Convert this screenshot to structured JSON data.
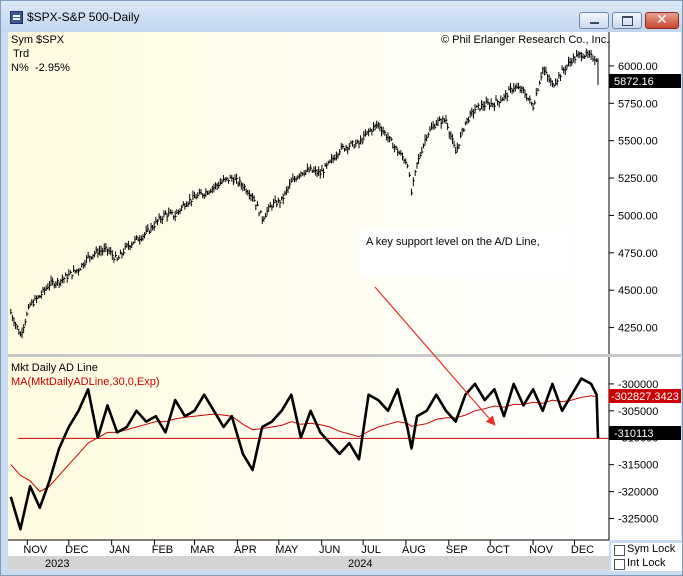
{
  "window": {
    "title": "$SPX-S&P 500-Daily",
    "controls": [
      "minimize-icon",
      "maximize-icon",
      "close-icon"
    ]
  },
  "info_panel": {
    "sym_label": "Sym",
    "sym_value": "$SPX",
    "trd_label": "Trd",
    "n_label": "N%",
    "n_value": "-2.95%"
  },
  "copyright": "© Phil Erlanger Research Co., Inc.",
  "annotation": "A key support level on the A/D Line,",
  "lower_titles": {
    "title1": "Mkt Daily AD Line",
    "title2": "MA(MktDailyADLine,30,0,Exp)"
  },
  "locks": {
    "sym_lock": "Sym Lock",
    "int_lock": "Int Lock"
  },
  "colors": {
    "price": "#000000",
    "ad_line": "#000000",
    "ma_line": "#cc0000",
    "support_line": "#cc0000",
    "arrow": "#e8302a",
    "bg_left": "#fffce8",
    "bg_right": "#ffffff"
  },
  "chart_data": [
    {
      "type": "line",
      "title": "$SPX-S&P 500-Daily",
      "style": "ohlc-bars",
      "ylim": [
        4100,
        6200
      ],
      "yticks": [
        "6000.00",
        "5750.00",
        "5500.00",
        "5250.00",
        "5000.00",
        "4750.00",
        "4500.00",
        "4250.00"
      ],
      "last_value_label": "5872.16",
      "x": [
        "2023-10-20",
        "2023-10-27",
        "2023-11-03",
        "2023-11-10",
        "2023-11-17",
        "2023-11-24",
        "2023-12-01",
        "2023-12-08",
        "2023-12-15",
        "2023-12-22",
        "2023-12-29",
        "2024-01-05",
        "2024-01-12",
        "2024-01-19",
        "2024-01-26",
        "2024-02-02",
        "2024-02-09",
        "2024-02-16",
        "2024-02-23",
        "2024-03-01",
        "2024-03-08",
        "2024-03-15",
        "2024-03-22",
        "2024-03-28",
        "2024-04-05",
        "2024-04-12",
        "2024-04-19",
        "2024-04-26",
        "2024-05-03",
        "2024-05-10",
        "2024-05-17",
        "2024-05-24",
        "2024-05-31",
        "2024-06-07",
        "2024-06-14",
        "2024-06-21",
        "2024-06-28",
        "2024-07-05",
        "2024-07-12",
        "2024-07-19",
        "2024-07-26",
        "2024-08-02",
        "2024-08-05",
        "2024-08-09",
        "2024-08-16",
        "2024-08-23",
        "2024-08-30",
        "2024-09-06",
        "2024-09-13",
        "2024-09-20",
        "2024-09-27",
        "2024-10-04",
        "2024-10-11",
        "2024-10-18",
        "2024-10-25",
        "2024-11-01",
        "2024-11-08",
        "2024-11-15",
        "2024-11-22",
        "2024-11-29",
        "2024-12-06",
        "2024-12-13",
        "2024-12-17",
        "2024-12-18"
      ],
      "series": [
        {
          "values": [
            4350,
            4200,
            4400,
            4460,
            4540,
            4560,
            4600,
            4640,
            4720,
            4760,
            4770,
            4700,
            4790,
            4840,
            4880,
            4950,
            5010,
            5000,
            5080,
            5120,
            5150,
            5190,
            5230,
            5250,
            5200,
            5130,
            4980,
            5070,
            5100,
            5220,
            5290,
            5300,
            5280,
            5350,
            5440,
            5470,
            5480,
            5560,
            5610,
            5520,
            5430,
            5350,
            5150,
            5340,
            5540,
            5620,
            5640,
            5420,
            5620,
            5710,
            5740,
            5750,
            5790,
            5860,
            5830,
            5730,
            5980,
            5870,
            5960,
            6040,
            6080,
            6060,
            6050,
            5872
          ]
        }
      ]
    },
    {
      "type": "line",
      "title": "Mkt Daily AD Line",
      "ylim": [
        -329000,
        -295000
      ],
      "yticks": [
        "-300000",
        "-305000",
        "-310000",
        "-315000",
        "-320000",
        "-325000"
      ],
      "last_value_label": "-310113",
      "ma_value_label": "-302827.3423",
      "support_level": -310113,
      "x": [
        "2023-10-20",
        "2023-10-27",
        "2023-11-03",
        "2023-11-10",
        "2023-11-17",
        "2023-11-24",
        "2023-12-01",
        "2023-12-08",
        "2023-12-15",
        "2023-12-22",
        "2023-12-29",
        "2024-01-05",
        "2024-01-12",
        "2024-01-19",
        "2024-01-26",
        "2024-02-02",
        "2024-02-09",
        "2024-02-16",
        "2024-02-23",
        "2024-03-01",
        "2024-03-08",
        "2024-03-15",
        "2024-03-22",
        "2024-03-28",
        "2024-04-05",
        "2024-04-12",
        "2024-04-19",
        "2024-04-26",
        "2024-05-03",
        "2024-05-10",
        "2024-05-17",
        "2024-05-24",
        "2024-05-31",
        "2024-06-07",
        "2024-06-14",
        "2024-06-21",
        "2024-06-28",
        "2024-07-05",
        "2024-07-12",
        "2024-07-19",
        "2024-07-26",
        "2024-08-02",
        "2024-08-05",
        "2024-08-09",
        "2024-08-16",
        "2024-08-23",
        "2024-08-30",
        "2024-09-06",
        "2024-09-13",
        "2024-09-20",
        "2024-09-27",
        "2024-10-04",
        "2024-10-11",
        "2024-10-18",
        "2024-10-25",
        "2024-11-01",
        "2024-11-08",
        "2024-11-15",
        "2024-11-22",
        "2024-11-29",
        "2024-12-06",
        "2024-12-13",
        "2024-12-17",
        "2024-12-18"
      ],
      "series": [
        {
          "name": "Mkt Daily AD Line",
          "values": [
            -321000,
            -327000,
            -319000,
            -323000,
            -318000,
            -312000,
            -308000,
            -305000,
            -301000,
            -310000,
            -304000,
            -309000,
            -308000,
            -305000,
            -307000,
            -306000,
            -309000,
            -303000,
            -306000,
            -305000,
            -302000,
            -305000,
            -308000,
            -306000,
            -313000,
            -316000,
            -308000,
            -307000,
            -305000,
            -302000,
            -310000,
            -305000,
            -309000,
            -311000,
            -313000,
            -311000,
            -314000,
            -302000,
            -303000,
            -305000,
            -301000,
            -308000,
            -312000,
            -306000,
            -305000,
            -302000,
            -305000,
            -307000,
            -302000,
            -300000,
            -303000,
            -301000,
            -306000,
            -300000,
            -304000,
            -301000,
            -305000,
            -300000,
            -305000,
            -302000,
            -299000,
            -300000,
            -302000,
            -310113
          ]
        },
        {
          "name": "MA(MktDailyADLine,30,0,Exp)",
          "values": [
            -315000,
            -317000,
            -318000,
            -320000,
            -319000,
            -317000,
            -315000,
            -313000,
            -311000,
            -310000,
            -309000,
            -309000,
            -308500,
            -308000,
            -307500,
            -307000,
            -307000,
            -306500,
            -306200,
            -306000,
            -305800,
            -305600,
            -305800,
            -306000,
            -307500,
            -308500,
            -308300,
            -308000,
            -307700,
            -307000,
            -307500,
            -307300,
            -307600,
            -308000,
            -308800,
            -309300,
            -309800,
            -308800,
            -308000,
            -307500,
            -307000,
            -307300,
            -307900,
            -307700,
            -307400,
            -306600,
            -306300,
            -306300,
            -305800,
            -305000,
            -304600,
            -304100,
            -304300,
            -303800,
            -303800,
            -303400,
            -303600,
            -303000,
            -303300,
            -303000,
            -302500,
            -302200,
            -302400,
            -302827
          ]
        }
      ]
    }
  ],
  "x_axis": {
    "months": [
      "NOV",
      "DEC",
      "JAN",
      "FEB",
      "MAR",
      "APR",
      "MAY",
      "JUN",
      "JUL",
      "AUG",
      "SEP",
      "OCT",
      "NOV",
      "DEC"
    ],
    "month_dates": [
      "2023-11-01",
      "2023-12-01",
      "2024-01-01",
      "2024-02-01",
      "2024-03-01",
      "2024-04-01",
      "2024-05-01",
      "2024-06-01",
      "2024-07-01",
      "2024-08-01",
      "2024-09-01",
      "2024-10-01",
      "2024-11-01",
      "2024-12-01"
    ],
    "years": [
      "2023",
      "2024"
    ],
    "start": "2023-10-18",
    "end": "2024-12-18"
  }
}
